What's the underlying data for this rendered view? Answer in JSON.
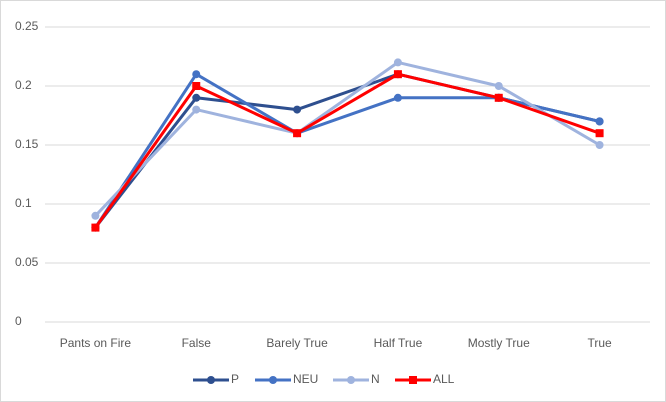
{
  "chart_data": {
    "type": "line",
    "categories": [
      "Pants on Fire",
      "False",
      "Barely True",
      "Half True",
      "Mostly True",
      "True"
    ],
    "series": [
      {
        "name": "P",
        "color": "#2e4f8f",
        "marker": "circle",
        "values": [
          0.08,
          0.19,
          0.18,
          0.21,
          0.19,
          0.17
        ]
      },
      {
        "name": "NEU",
        "color": "#4472c4",
        "marker": "circle",
        "values": [
          0.08,
          0.21,
          0.16,
          0.19,
          0.19,
          0.17
        ]
      },
      {
        "name": "N",
        "color": "#9fb3de",
        "marker": "circle",
        "values": [
          0.09,
          0.18,
          0.16,
          0.22,
          0.2,
          0.15
        ]
      },
      {
        "name": "ALL",
        "color": "#ff0000",
        "marker": "square",
        "values": [
          0.08,
          0.2,
          0.16,
          0.21,
          0.19,
          0.16
        ]
      }
    ],
    "ylim": [
      0,
      0.25
    ],
    "yticks": [
      0,
      0.05,
      0.1,
      0.15,
      0.2,
      0.25
    ],
    "grid": true,
    "legend": "bottom"
  }
}
